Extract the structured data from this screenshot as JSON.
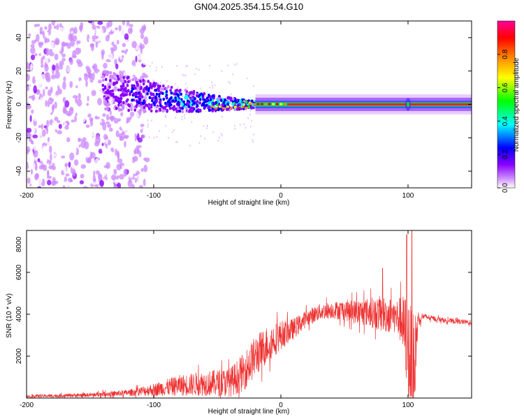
{
  "title": "GN04.2025.354.15.54.G10",
  "chart_data": [
    {
      "type": "heatmap",
      "title": "GN04.2025.354.15.54.G10",
      "xlabel": "Height of straight line (km)",
      "ylabel": "Frequency (Hz)",
      "xlim": [
        -200,
        150
      ],
      "ylim": [
        -50,
        50
      ],
      "xticks": [
        -200,
        -100,
        0,
        100
      ],
      "yticks": [
        -40,
        -20,
        0,
        20,
        40
      ],
      "colorbar": {
        "label": "Normalized spectral amplitude",
        "range": [
          0,
          1
        ],
        "ticks": [
          0.0,
          0.2,
          0.4,
          0.6,
          0.8
        ],
        "colormap": [
          "#ff0099",
          "#ff0000",
          "#ff8800",
          "#ffff00",
          "#00ff00",
          "#00ffff",
          "#0000ff",
          "#8800ff",
          "#ffffff"
        ]
      },
      "description_points": [
        {
          "x": -150,
          "noise": "scattered purple speckle over full band"
        },
        {
          "x": -120,
          "freq": 8,
          "amp": 0.25
        },
        {
          "x": -80,
          "freq": 5,
          "amp": 0.4
        },
        {
          "x": -50,
          "freq": 2,
          "amp": 0.55
        },
        {
          "x": -30,
          "freq": -2,
          "amp": 0.6
        },
        {
          "x": -10,
          "freq": 0,
          "amp": 0.85
        },
        {
          "x": 50,
          "freq": 0,
          "amp": 0.95
        },
        {
          "x": 100,
          "freq": 0,
          "amp": 0.9
        },
        {
          "x": 150,
          "freq": 0,
          "amp": 0.85
        }
      ]
    },
    {
      "type": "line",
      "xlabel": "Height of straight line (km)",
      "ylabel": "SNR (10 * v/v)",
      "xlim": [
        -200,
        150
      ],
      "ylim": [
        0,
        8000
      ],
      "xticks": [
        -200,
        -100,
        0,
        100
      ],
      "yticks": [
        2000,
        4000,
        6000,
        8000
      ],
      "color": "#ee3333",
      "series_envelope": {
        "x": [
          -200,
          -150,
          -120,
          -100,
          -80,
          -60,
          -40,
          -30,
          -20,
          -10,
          0,
          10,
          20,
          30,
          40,
          50,
          60,
          70,
          80,
          90,
          95,
          100,
          104,
          108,
          112,
          120,
          130,
          150
        ],
        "mean": [
          80,
          150,
          250,
          400,
          600,
          700,
          750,
          1200,
          2000,
          2600,
          3000,
          3300,
          3800,
          4100,
          4200,
          4200,
          4100,
          4100,
          4000,
          3900,
          3700,
          2500,
          1000,
          3800,
          3900,
          3800,
          3700,
          3600
        ],
        "amp": [
          60,
          100,
          150,
          300,
          500,
          600,
          700,
          900,
          1000,
          900,
          700,
          500,
          400,
          400,
          400,
          500,
          600,
          700,
          900,
          800,
          1200,
          2500,
          3000,
          400,
          150,
          120,
          120,
          120
        ]
      },
      "spikes": [
        {
          "x": 80,
          "y": 6200
        },
        {
          "x": 99,
          "y": 7800
        },
        {
          "x": 103,
          "y": 8000
        },
        {
          "x": 105,
          "y": 300
        }
      ]
    }
  ]
}
